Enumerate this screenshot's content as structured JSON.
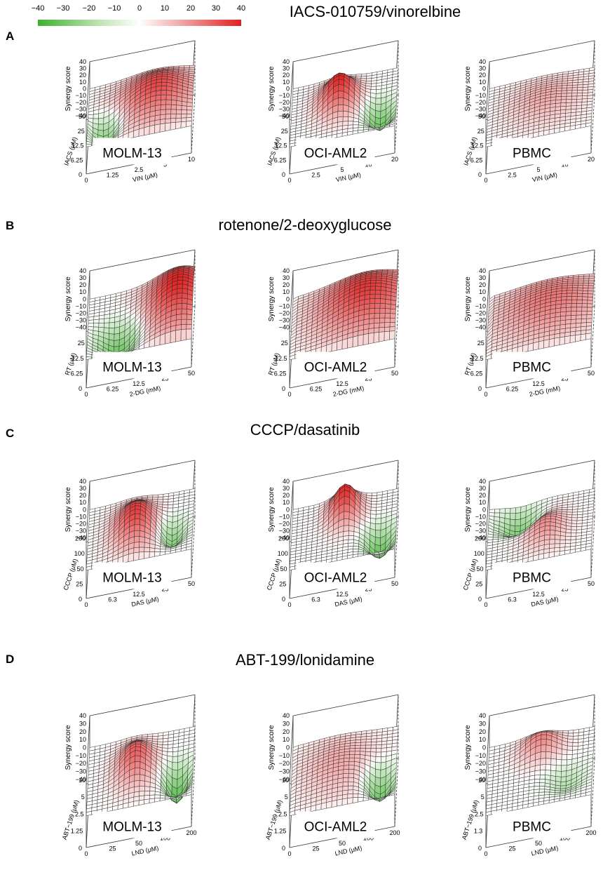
{
  "legend": {
    "tick_labels": [
      "−40",
      "−30",
      "−20",
      "−10",
      "0",
      "10",
      "20",
      "30",
      "40"
    ],
    "colors": {
      "negative": "#3fb02f",
      "neutral": "#ffffff",
      "positive": "#e02020"
    }
  },
  "chart_data": [
    {
      "type": "surface",
      "panel": "A",
      "title": "IACS-010759/vinorelbine",
      "zlabel": "Synergy score",
      "zlim": [
        -40,
        40
      ],
      "z_ticks": [
        "40",
        "30",
        "20",
        "10",
        "0",
        "−10",
        "−20",
        "−30",
        "−40"
      ],
      "plots": [
        {
          "cell_line": "MOLM-13",
          "ylabel": "IACS (μM)",
          "xlabel": "VIN (μM)",
          "y_ticks": [
            "0",
            "6.25",
            "12.5",
            "25",
            "50"
          ],
          "x_ticks": [
            "0",
            "1.25",
            "2.5",
            "5",
            "10"
          ],
          "peak_z": 32,
          "peak_x": 0.65,
          "peak_y": 0.55,
          "peak_wx": 0.35,
          "peak_wy": 0.42,
          "dip_z": -25,
          "dip_x": 0.18,
          "dip_y": 0.3,
          "dip_wx": 0.15,
          "dip_wy": 0.2
        },
        {
          "cell_line": "OCI-AML2",
          "ylabel": "IACS (μM)",
          "xlabel": "VIN (μM)",
          "y_ticks": [
            "0",
            "6.25",
            "12.5",
            "25",
            "50"
          ],
          "x_ticks": [
            "0",
            "2.5",
            "5",
            "10",
            "20"
          ],
          "peak_z": 40,
          "peak_x": 0.45,
          "peak_y": 0.6,
          "peak_wx": 0.18,
          "peak_wy": 0.28,
          "dip_z": -30,
          "dip_x": 0.85,
          "dip_y": 0.35,
          "dip_wx": 0.14,
          "dip_wy": 0.2
        },
        {
          "cell_line": "PBMC",
          "ylabel": "IACS (μM)",
          "xlabel": "VIN (μM)",
          "y_ticks": [
            "0",
            "6.25",
            "12.5",
            "25",
            "50"
          ],
          "x_ticks": [
            "0",
            "2.5",
            "5",
            "10",
            "20"
          ],
          "peak_z": 12,
          "peak_x": 0.55,
          "peak_y": 0.55,
          "peak_wx": 0.35,
          "peak_wy": 0.4,
          "dip_z": 0,
          "dip_x": 0.5,
          "dip_y": 0.5,
          "dip_wx": 0.2,
          "dip_wy": 0.2
        }
      ]
    },
    {
      "type": "surface",
      "panel": "B",
      "title": "rotenone/2-deoxyglucose",
      "zlabel": "Synergy score",
      "zlim": [
        -40,
        40
      ],
      "z_ticks": [
        "40",
        "30",
        "20",
        "10",
        "0",
        "−10",
        "−20",
        "−30",
        "−40"
      ],
      "plots": [
        {
          "cell_line": "MOLM-13",
          "ylabel": "RT (μM)",
          "xlabel": "2-DG (mM)",
          "y_ticks": [
            "0",
            "6.25",
            "12.5",
            "25",
            ""
          ],
          "x_ticks": [
            "0",
            "6.25",
            "12.5",
            "25",
            "50"
          ],
          "peak_z": 40,
          "peak_x": 0.85,
          "peak_y": 0.6,
          "peak_wx": 0.3,
          "peak_wy": 0.5,
          "dip_z": -30,
          "dip_x": 0.3,
          "dip_y": 0.3,
          "dip_wx": 0.2,
          "dip_wy": 0.25
        },
        {
          "cell_line": "OCI-AML2",
          "ylabel": "RT (μM)",
          "xlabel": "2-DG (mM)",
          "y_ticks": [
            "0",
            "6.25",
            "12.5",
            "25",
            ""
          ],
          "x_ticks": [
            "0",
            "6.25",
            "12.5",
            "25",
            "50"
          ],
          "peak_z": 35,
          "peak_x": 0.7,
          "peak_y": 0.6,
          "peak_wx": 0.45,
          "peak_wy": 0.5,
          "dip_z": 0,
          "dip_x": 0.5,
          "dip_y": 0.5,
          "dip_wx": 0.2,
          "dip_wy": 0.2
        },
        {
          "cell_line": "PBMC",
          "ylabel": "RT (μM)",
          "xlabel": "2-DG (mM)",
          "y_ticks": [
            "0",
            "6.25",
            "12.5",
            "25",
            ""
          ],
          "x_ticks": [
            "0",
            "6.25",
            "12.5",
            "25",
            "50"
          ],
          "peak_z": 22,
          "peak_x": 0.6,
          "peak_y": 0.6,
          "peak_wx": 0.5,
          "peak_wy": 0.5,
          "dip_z": 0,
          "dip_x": 0.5,
          "dip_y": 0.5,
          "dip_wx": 0.2,
          "dip_wy": 0.2
        }
      ]
    },
    {
      "type": "surface",
      "panel": "C",
      "title": "CCCP/dasatinib",
      "zlabel": "Synergy score",
      "zlim": [
        -40,
        40
      ],
      "z_ticks": [
        "40",
        "30",
        "20",
        "10",
        "0",
        "−10",
        "−20",
        "−30",
        "−40"
      ],
      "plots": [
        {
          "cell_line": "MOLM-13",
          "ylabel": "CCCP (μM)",
          "xlabel": "DAS (μM)",
          "y_ticks": [
            "0",
            "25",
            "50",
            "100",
            "200"
          ],
          "x_ticks": [
            "0",
            "6.3",
            "12.5",
            "25",
            "50"
          ],
          "peak_z": 35,
          "peak_x": 0.45,
          "peak_y": 0.5,
          "peak_wx": 0.2,
          "peak_wy": 0.35,
          "dip_z": -25,
          "dip_x": 0.8,
          "dip_y": 0.4,
          "dip_wx": 0.12,
          "dip_wy": 0.2
        },
        {
          "cell_line": "OCI-AML2",
          "ylabel": "CCCP (μM)",
          "xlabel": "DAS (μM)",
          "y_ticks": [
            "0",
            "25",
            "50",
            "100",
            "200"
          ],
          "x_ticks": [
            "0",
            "6.3",
            "12.5",
            "25",
            "50"
          ],
          "peak_z": 40,
          "peak_x": 0.5,
          "peak_y": 0.75,
          "peak_wx": 0.15,
          "peak_wy": 0.25,
          "dip_z": -32,
          "dip_x": 0.85,
          "dip_y": 0.3,
          "dip_wx": 0.14,
          "dip_wy": 0.2
        },
        {
          "cell_line": "PBMC",
          "ylabel": "CCCP (μM)",
          "xlabel": "DAS (μM)",
          "y_ticks": [
            "0",
            "25",
            "50",
            "100",
            "200"
          ],
          "x_ticks": [
            "0",
            "6.3",
            "12.5",
            "25",
            "50"
          ],
          "peak_z": 18,
          "peak_x": 0.55,
          "peak_y": 0.45,
          "peak_wx": 0.2,
          "peak_wy": 0.3,
          "dip_z": -25,
          "dip_x": 0.3,
          "dip_y": 0.75,
          "dip_wx": 0.2,
          "dip_wy": 0.2
        }
      ]
    },
    {
      "type": "surface",
      "panel": "D",
      "title": "ABT-199/lonidamine",
      "zlabel": "Synergy score",
      "zlim": [
        -40,
        40
      ],
      "z_ticks": [
        "40",
        "30",
        "20",
        "10",
        "0",
        "−10",
        "−20",
        "−30",
        "−40"
      ],
      "plots": [
        {
          "cell_line": "MOLM-13",
          "ylabel": "ABT−199 (μM)",
          "xlabel": "LND (μM)",
          "y_ticks": [
            "0",
            "1.25",
            "2.5",
            "5",
            "10"
          ],
          "x_ticks": [
            "0",
            "25",
            "50",
            "100",
            "200"
          ],
          "peak_z": 28,
          "peak_x": 0.45,
          "peak_y": 0.55,
          "peak_wx": 0.18,
          "peak_wy": 0.3,
          "dip_z": -35,
          "dip_x": 0.85,
          "dip_y": 0.35,
          "dip_wx": 0.12,
          "dip_wy": 0.2
        },
        {
          "cell_line": "OCI-AML2",
          "ylabel": "ABT−199 (μM)",
          "xlabel": "LND (μM)",
          "y_ticks": [
            "0",
            "1.25",
            "2.5",
            "5",
            "10"
          ],
          "x_ticks": [
            "0",
            "25",
            "50",
            "100",
            "200"
          ],
          "peak_z": 12,
          "peak_x": 0.45,
          "peak_y": 0.55,
          "peak_wx": 0.35,
          "peak_wy": 0.45,
          "dip_z": -30,
          "dip_x": 0.85,
          "dip_y": 0.3,
          "dip_wx": 0.14,
          "dip_wy": 0.2
        },
        {
          "cell_line": "PBMC",
          "ylabel": "ABT−199 (μM)",
          "xlabel": "LND (μM)",
          "y_ticks": [
            "0",
            "1.3",
            "2.5",
            "5",
            "10"
          ],
          "x_ticks": [
            "0",
            "25",
            "50",
            "100",
            "200"
          ],
          "peak_z": 20,
          "peak_x": 0.5,
          "peak_y": 0.8,
          "peak_wx": 0.2,
          "peak_wy": 0.2,
          "dip_z": -12,
          "dip_x": 0.75,
          "dip_y": 0.35,
          "dip_wx": 0.18,
          "dip_wy": 0.2
        }
      ]
    }
  ]
}
